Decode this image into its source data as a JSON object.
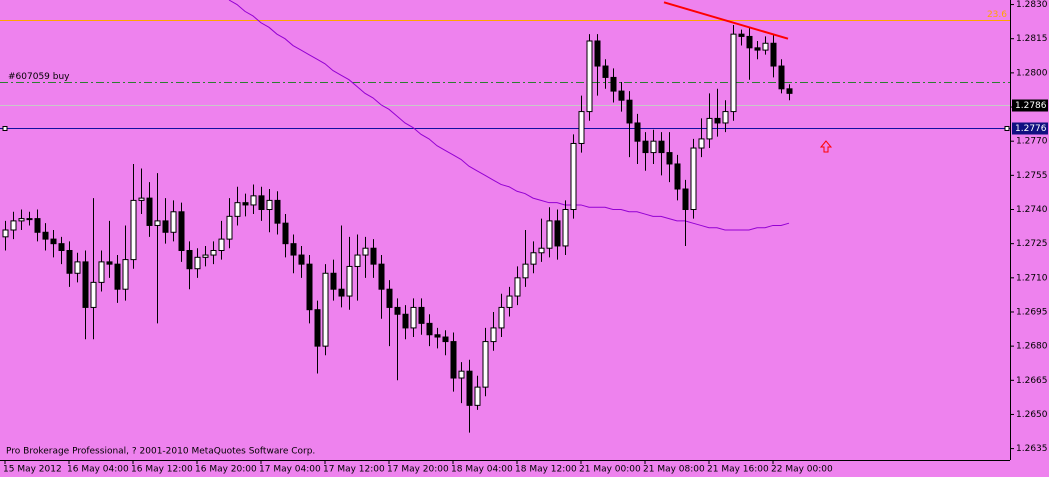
{
  "chart_data": {
    "type": "candlestick",
    "categories": [
      "15 May 2012",
      null,
      null,
      null,
      null,
      null,
      null,
      null,
      "16 May 04:00",
      null,
      null,
      null,
      null,
      null,
      null,
      null,
      "16 May 12:00",
      null,
      null,
      null,
      null,
      null,
      null,
      null,
      "16 May 20:00",
      null,
      null,
      null,
      null,
      null,
      null,
      null,
      "17 May 04:00",
      null,
      null,
      null,
      null,
      null,
      null,
      null,
      "17 May 12:00",
      null,
      null,
      null,
      null,
      null,
      null,
      null,
      "17 May 20:00",
      null,
      null,
      null,
      null,
      null,
      null,
      null,
      "18 May 04:00",
      null,
      null,
      null,
      null,
      null,
      null,
      null,
      "18 May 12:00",
      null,
      null,
      null,
      null,
      null,
      null,
      null,
      "21 May 00:00",
      null,
      null,
      null,
      null,
      null,
      null,
      null,
      "21 May 08:00",
      null,
      null,
      null,
      null,
      null,
      null,
      null,
      "21 May 16:00",
      null,
      null,
      null,
      null,
      null,
      null,
      null,
      "22 May 00:00",
      null,
      null
    ],
    "open": [
      1.2728,
      1.2731,
      1.2735,
      1.2736,
      1.2736,
      1.273,
      1.2727,
      1.2725,
      1.2722,
      1.2712,
      1.2717,
      1.2697,
      1.2708,
      1.2717,
      1.2716,
      1.2705,
      1.2718,
      1.2744,
      1.2745,
      1.2733,
      1.2735,
      1.273,
      1.2739,
      1.2722,
      1.2714,
      1.2719,
      1.272,
      1.2722,
      1.2727,
      1.2737,
      1.2743,
      1.2742,
      1.2746,
      1.274,
      1.2744,
      1.2734,
      1.2725,
      1.272,
      1.2716,
      1.2696,
      1.268,
      1.2712,
      1.2705,
      1.2702,
      1.2715,
      1.272,
      1.2723,
      1.2716,
      1.2705,
      1.2697,
      1.2694,
      1.2688,
      1.2697,
      1.269,
      1.2685,
      1.2684,
      1.2682,
      1.2666,
      1.2669,
      1.2654,
      1.2662,
      1.2682,
      1.2688,
      1.2697,
      1.2702,
      1.271,
      1.2716,
      1.2721,
      1.2723,
      1.2735,
      1.2724,
      1.274,
      1.2769,
      1.2783,
      1.2814,
      1.2803,
      1.2798,
      1.2792,
      1.2788,
      1.2778,
      1.277,
      1.2765,
      1.277,
      1.2765,
      1.276,
      1.2749,
      1.274,
      1.2767,
      1.2771,
      1.278,
      1.2778,
      1.2783,
      1.2817,
      1.2816,
      1.2811,
      1.281,
      1.2813,
      1.2803,
      1.2793
    ],
    "high": [
      1.2735,
      1.2739,
      1.274,
      1.2739,
      1.274,
      1.2734,
      1.2731,
      1.2728,
      1.2726,
      1.2721,
      1.2722,
      1.2745,
      1.2722,
      1.2735,
      1.272,
      1.2733,
      1.276,
      1.2758,
      1.2752,
      1.2756,
      1.2745,
      1.2744,
      1.2743,
      1.2726,
      1.2723,
      1.2724,
      1.2726,
      1.2735,
      1.2745,
      1.275,
      1.2747,
      1.2751,
      1.275,
      1.2749,
      1.2748,
      1.2738,
      1.2729,
      1.2724,
      1.272,
      1.27,
      1.2716,
      1.2718,
      1.2733,
      1.2728,
      1.2729,
      1.2728,
      1.2727,
      1.272,
      1.2709,
      1.2701,
      1.2698,
      1.2701,
      1.2701,
      1.2694,
      1.2688,
      1.2687,
      1.2686,
      1.2673,
      1.2674,
      1.2667,
      1.2688,
      1.2695,
      1.2703,
      1.2706,
      1.2715,
      1.2731,
      1.2726,
      1.2736,
      1.2741,
      1.274,
      1.2744,
      1.2773,
      1.279,
      1.2817,
      1.2817,
      1.2806,
      1.2802,
      1.2796,
      1.2792,
      1.2782,
      1.2774,
      1.2775,
      1.2774,
      1.2774,
      1.2764,
      1.2753,
      1.2771,
      1.278,
      1.2791,
      1.2793,
      1.2788,
      1.2821,
      1.2819,
      1.282,
      1.2814,
      1.2816,
      1.2817,
      1.2806,
      1.2795
    ],
    "low": [
      1.2722,
      1.2727,
      1.2731,
      1.2733,
      1.2726,
      1.2722,
      1.2719,
      1.2716,
      1.2706,
      1.2708,
      1.2683,
      1.2683,
      1.2704,
      1.271,
      1.2699,
      1.27,
      1.2714,
      1.2738,
      1.2728,
      1.269,
      1.2725,
      1.2726,
      1.2717,
      1.2705,
      1.271,
      1.2715,
      1.2716,
      1.2718,
      1.2723,
      1.2733,
      1.2737,
      1.2738,
      1.2735,
      1.273,
      1.2729,
      1.2719,
      1.2712,
      1.271,
      1.269,
      1.2668,
      1.2676,
      1.27,
      1.2697,
      1.2696,
      1.27,
      1.271,
      1.271,
      1.2692,
      1.268,
      1.2665,
      1.2683,
      1.2684,
      1.2685,
      1.268,
      1.2679,
      1.2676,
      1.266,
      1.2655,
      1.2642,
      1.2652,
      1.2658,
      1.2678,
      1.2684,
      1.2693,
      1.2698,
      1.2706,
      1.2712,
      1.2717,
      1.2719,
      1.2718,
      1.272,
      1.2736,
      1.2765,
      1.2779,
      1.279,
      1.2793,
      1.2787,
      1.2783,
      1.2763,
      1.276,
      1.2757,
      1.276,
      1.2755,
      1.2752,
      1.2744,
      1.2724,
      1.2736,
      1.2763,
      1.2767,
      1.2772,
      1.2774,
      1.2779,
      1.2812,
      1.2797,
      1.2806,
      1.2808,
      1.2798,
      1.2791,
      1.2788
    ],
    "close": [
      1.2731,
      1.2735,
      1.2736,
      1.2736,
      1.273,
      1.2727,
      1.2725,
      1.2722,
      1.2712,
      1.2717,
      1.2697,
      1.2708,
      1.2717,
      1.2716,
      1.2705,
      1.2718,
      1.2744,
      1.2745,
      1.2733,
      1.2735,
      1.273,
      1.2739,
      1.2722,
      1.2714,
      1.2719,
      1.272,
      1.2722,
      1.2727,
      1.2737,
      1.2743,
      1.2742,
      1.2746,
      1.274,
      1.2744,
      1.2734,
      1.2725,
      1.272,
      1.2716,
      1.2696,
      1.268,
      1.2712,
      1.2705,
      1.2702,
      1.2715,
      1.272,
      1.2723,
      1.2716,
      1.2705,
      1.2697,
      1.2694,
      1.2688,
      1.2697,
      1.269,
      1.2685,
      1.2684,
      1.2682,
      1.2666,
      1.2669,
      1.2654,
      1.2662,
      1.2682,
      1.2688,
      1.2697,
      1.2702,
      1.271,
      1.2716,
      1.2721,
      1.2723,
      1.2735,
      1.2724,
      1.274,
      1.2769,
      1.2783,
      1.2814,
      1.2803,
      1.2798,
      1.2792,
      1.2788,
      1.2778,
      1.277,
      1.2765,
      1.277,
      1.2765,
      1.276,
      1.2749,
      1.274,
      1.2767,
      1.2771,
      1.278,
      1.2778,
      1.2783,
      1.2817,
      1.2816,
      1.2811,
      1.281,
      1.2813,
      1.2803,
      1.2793,
      1.2791
    ],
    "up_color": "#ffffff",
    "down_color": "#000000",
    "ma": {
      "color": "#9400d3",
      "values": [
        null,
        null,
        null,
        null,
        null,
        null,
        null,
        null,
        null,
        null,
        null,
        null,
        null,
        null,
        null,
        null,
        null,
        null,
        null,
        null,
        null,
        null,
        null,
        null,
        null,
        null,
        null,
        null,
        1.2832,
        1.283,
        1.2827,
        1.2825,
        1.2822,
        1.282,
        1.2817,
        1.2815,
        1.2812,
        1.281,
        1.2808,
        1.2806,
        1.2804,
        1.2801,
        1.2799,
        1.2797,
        1.2794,
        1.2791,
        1.2789,
        1.2786,
        1.2784,
        1.2781,
        1.2778,
        1.2776,
        1.2773,
        1.2771,
        1.2768,
        1.2766,
        1.2764,
        1.2762,
        1.2759,
        1.2757,
        1.2755,
        1.2753,
        1.2751,
        1.275,
        1.2748,
        1.2747,
        1.2745,
        1.2744,
        1.2743,
        1.2743,
        1.2742,
        1.2742,
        1.2742,
        1.2741,
        1.2741,
        1.2741,
        1.274,
        1.274,
        1.2739,
        1.2739,
        1.2738,
        1.2737,
        1.2737,
        1.2736,
        1.2735,
        1.2735,
        1.2734,
        1.2733,
        1.2732,
        1.2732,
        1.2731,
        1.2731,
        1.2731,
        1.2731,
        1.2732,
        1.2732,
        1.2733,
        1.2733,
        1.2734
      ]
    },
    "trendline": {
      "color": "#ff0000",
      "values": [
        1.2831,
        1.2815
      ]
    },
    "hlines": [
      {
        "label": "23.6",
        "value": 1.2823,
        "color": "#ffa500"
      },
      {
        "label": "#607059 buy",
        "value": 1.2796,
        "color": "#2e7d32",
        "dash": true
      },
      {
        "value": 1.2786,
        "color": "#c8c8c8",
        "tag_color": "#000000"
      },
      {
        "value": 1.2776,
        "color": "#1010a0",
        "tag_color": "#101080"
      }
    ],
    "ylim": [
      1.263,
      1.2832
    ],
    "yticks": [
      {
        "value": 1.283,
        "label": "1.2830"
      },
      1.2815,
      {
        "value": 1.28,
        "label": "1.2800"
      },
      1.2785,
      {
        "value": 1.277,
        "label": "1.2770"
      },
      1.2755,
      {
        "value": 1.274,
        "label": "1.2740"
      },
      1.2725,
      {
        "value": 1.271,
        "label": "1.2710"
      },
      1.2695,
      {
        "value": 1.268,
        "label": "1.2680"
      },
      1.2665,
      {
        "value": 1.265,
        "label": "1.2650"
      },
      1.2635
    ],
    "copyright": "Pro Brokerage Professional, ? 2001-2010 MetaQuotes Software Corp.",
    "background": "#ee82ee"
  }
}
